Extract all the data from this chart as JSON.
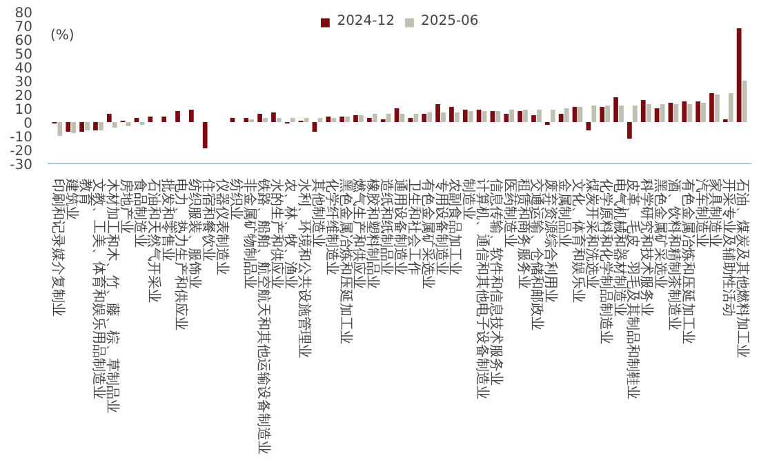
{
  "chart_data": {
    "type": "bar",
    "ylabel": "(%)",
    "categories": [
      "印刷和记录媒介复制业",
      "建筑业",
      "教育",
      "文教、工美、体育和娱乐用品制造业",
      "木材加工和木、竹、藤、棕、草制品业",
      "房地产业",
      "食品制造业",
      "石油和天然气开采业",
      "批发和零售业",
      "电力、热力生产和供应业",
      "纺织服装、服饰业",
      "住宿和餐饮业",
      "仪器仪表制造业",
      "纺织业",
      "非金属矿物制品业",
      "铁路、船舶、航空航天和其他运输设备制造业",
      "水的生产和供应业",
      "农、林、牧、渔业",
      "水利、环境和公共设施管理业",
      "其他制造业",
      "化学纤维制造业",
      "黑色金属冶炼和压延加工业",
      "燃气生产和供应业",
      "橡胶和塑料制品业",
      "造纸和纸制品业",
      "通用设备制造业",
      "卫生和社会工作",
      "有色金属矿采选业",
      "专用设备制造业",
      "农副食品加工业",
      "制造业",
      "计算机、通信和其他电子设备制造业",
      "信息传输、软件和信息技术服务业",
      "医药制造业",
      "租赁和商务服务业",
      "交通运输、仓储和邮政业",
      "废弃资源综合利用业",
      "金属制品业",
      "文化、体育和娱乐业",
      "煤炭开采和洗选业",
      "化学原料和化学制品制造业",
      "电气机械和器材制造业",
      "皮革、毛皮、羽毛及其制品和制鞋业",
      "科学研究和技术服务业",
      "黑色金属矿采选业",
      "酒、饮料和精制茶制造业",
      "有色金属冶炼和压延加工业",
      "汽车制造业",
      "家具制造业",
      "开采专业及辅助性活动",
      "石油、煤炭及其他燃料加工业"
    ],
    "series": [
      {
        "name": "2024-12",
        "color": "#7b0c12",
        "values": [
          -1,
          -7,
          -7,
          -6,
          6,
          1,
          3,
          4,
          4,
          8,
          9,
          -19,
          0,
          3,
          3,
          6,
          7,
          -1,
          1,
          -7,
          4,
          4,
          5,
          3,
          2,
          10,
          3,
          6,
          13,
          11,
          9,
          9,
          8,
          6,
          8,
          5,
          -2,
          6,
          11,
          -6,
          11,
          18,
          -12,
          16,
          10,
          14,
          15,
          15,
          21,
          2,
          68
        ]
      },
      {
        "name": "2025-06",
        "color": "#bfbfb2",
        "values": [
          -10,
          -8,
          -6,
          -6,
          -4,
          -3,
          -2,
          0,
          0,
          0,
          0,
          0,
          0,
          0,
          2,
          3,
          3,
          3,
          3,
          3,
          3,
          4,
          5,
          6,
          6,
          6,
          6,
          7,
          7,
          7,
          8,
          8,
          8,
          9,
          9,
          9,
          9,
          10,
          11,
          12,
          12,
          12,
          12,
          13,
          13,
          13,
          13,
          14,
          20,
          21,
          30
        ]
      }
    ],
    "ylim": [
      -30,
      80
    ],
    "yticks": [
      -30,
      -20,
      -10,
      0,
      10,
      20,
      30,
      40,
      50,
      60,
      70,
      80
    ],
    "legend": "top",
    "grid": false
  }
}
